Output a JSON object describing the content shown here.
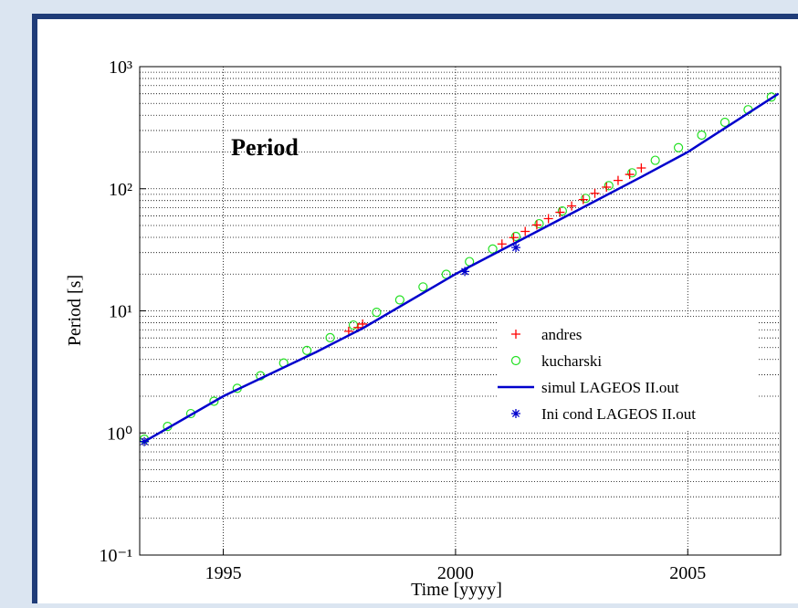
{
  "chart_data": {
    "type": "line",
    "title": "Period",
    "x_label": "Time [yyyy]",
    "y_label": "Period [s]",
    "log_y": true,
    "grid": true,
    "minor_grid": true,
    "legend": "right",
    "xlim": [
      1993.2,
      2007
    ],
    "xticks": [
      1995,
      2000,
      2005
    ],
    "ylim": [
      0.1,
      1000
    ],
    "yticks": [
      {
        "value": 0.1,
        "label": "10⁻¹"
      },
      {
        "value": 1,
        "label": "10⁰"
      },
      {
        "value": 10,
        "label": "10¹"
      },
      {
        "value": 100,
        "label": "10²"
      },
      {
        "value": 1000,
        "label": "10³"
      }
    ],
    "yminorticks": [
      0.2,
      0.3,
      0.4,
      0.5,
      0.6,
      0.7,
      0.8,
      0.9,
      2,
      3,
      4,
      5,
      6,
      7,
      8,
      9,
      20,
      30,
      40,
      50,
      60,
      70,
      80,
      90,
      200,
      300,
      400,
      500,
      600,
      700,
      800,
      900
    ],
    "series": [
      {
        "name": "andres",
        "color": "#ff0000",
        "mode": "markers",
        "marker": "+",
        "x": [
          1997.7,
          1997.9,
          1998.0,
          2001.0,
          2001.25,
          2001.5,
          2001.75,
          2002.0,
          2002.25,
          2002.5,
          2002.75,
          2003.0,
          2003.25,
          2003.5,
          2003.75,
          2004.0
        ],
        "values": [
          6.8,
          7.3,
          7.8,
          35.3,
          39.8,
          44.7,
          50.5,
          56.9,
          64.1,
          72.3,
          81.5,
          91.8,
          103,
          117,
          131,
          148
        ]
      },
      {
        "name": "kucharski",
        "color": "#22e022",
        "mode": "markers",
        "marker": "o",
        "x": [
          1993.3,
          1993.8,
          1994.3,
          1994.8,
          1995.3,
          1995.8,
          1996.3,
          1996.8,
          1997.3,
          1997.8,
          1998.3,
          1998.8,
          1999.3,
          1999.8,
          2000.3,
          2000.8,
          2001.3,
          2001.8,
          2002.3,
          2002.8,
          2003.3,
          2003.8,
          2004.3,
          2004.8,
          2005.3,
          2005.8,
          2006.3,
          2006.8
        ],
        "values": [
          0.89,
          1.13,
          1.44,
          1.82,
          2.32,
          2.94,
          3.74,
          4.74,
          6.03,
          7.65,
          9.72,
          12.3,
          15.7,
          19.9,
          25.3,
          32.1,
          40.7,
          51.7,
          65.7,
          83.4,
          106,
          135,
          171,
          217,
          275,
          350,
          444,
          564
        ]
      },
      {
        "name": "simul LAGEOS II.out",
        "color": "#0000cc",
        "mode": "line",
        "x": [
          1993.3,
          1995,
          1997,
          1998,
          2000,
          2002,
          2004,
          2005,
          2006.95
        ],
        "values": [
          0.85,
          2.0,
          4.6,
          7.2,
          20,
          50,
          125,
          200,
          600
        ]
      },
      {
        "name": "Ini cond LAGEOS II.out",
        "color": "#0000cc",
        "mode": "markers",
        "marker": "*",
        "x": [
          1993.3,
          2000.2,
          2001.3
        ],
        "values": [
          0.85,
          21,
          33
        ]
      }
    ]
  }
}
